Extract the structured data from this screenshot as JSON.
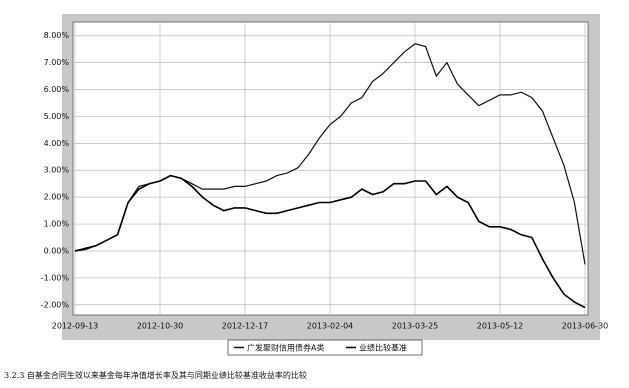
{
  "chart_data": {
    "type": "line",
    "categories": [
      "2012-09-13",
      null,
      null,
      null,
      null,
      null,
      null,
      null,
      "2012-10-30",
      null,
      null,
      null,
      null,
      null,
      null,
      null,
      "2012-12-17",
      null,
      null,
      null,
      null,
      null,
      null,
      null,
      "2013-02-04",
      null,
      null,
      null,
      null,
      null,
      null,
      null,
      "2013-03-25",
      null,
      null,
      null,
      null,
      null,
      null,
      null,
      "2013-05-12",
      null,
      null,
      null,
      null,
      null,
      null,
      null,
      "2013-06-30"
    ],
    "series": [
      {
        "name": "广发聚财信用债券A类",
        "color": "#111111",
        "values": [
          0.0,
          0.05,
          0.2,
          0.4,
          0.6,
          1.8,
          2.4,
          2.5,
          2.6,
          2.8,
          2.7,
          2.5,
          2.3,
          2.3,
          2.3,
          2.4,
          2.4,
          2.5,
          2.6,
          2.8,
          2.9,
          3.1,
          3.6,
          4.2,
          4.7,
          5.0,
          5.5,
          5.7,
          6.3,
          6.6,
          7.0,
          7.4,
          7.7,
          7.6,
          6.5,
          7.0,
          6.2,
          5.8,
          5.4,
          5.6,
          5.8,
          5.8,
          5.9,
          5.7,
          5.2,
          4.2,
          3.2,
          1.8,
          -0.5
        ]
      },
      {
        "name": "业绩比较基准",
        "color": "#000000",
        "values": [
          0.0,
          0.1,
          0.2,
          0.4,
          0.6,
          1.8,
          2.3,
          2.5,
          2.6,
          2.8,
          2.7,
          2.4,
          2.0,
          1.7,
          1.5,
          1.6,
          1.6,
          1.5,
          1.4,
          1.4,
          1.5,
          1.6,
          1.7,
          1.8,
          1.8,
          1.9,
          2.0,
          2.3,
          2.1,
          2.2,
          2.5,
          2.5,
          2.6,
          2.6,
          2.1,
          2.4,
          2.0,
          1.8,
          1.1,
          0.9,
          0.9,
          0.8,
          0.6,
          0.5,
          -0.3,
          -1.0,
          -1.6,
          -1.9,
          -2.1
        ]
      }
    ],
    "ylim": [
      -2.38,
      8.51
    ],
    "yticks": [
      {
        "value": 8,
        "label": "8.00%"
      },
      {
        "value": 7,
        "label": "7.00%"
      },
      {
        "value": 6,
        "label": "6.00%"
      },
      {
        "value": 5,
        "label": "5.00%"
      },
      {
        "value": 4,
        "label": "4.00%"
      },
      {
        "value": 3,
        "label": "3.00%"
      },
      {
        "value": 2,
        "label": "2.00%"
      },
      {
        "value": 1,
        "label": "1.00%"
      },
      {
        "value": 0,
        "label": "0.00%"
      },
      {
        "value": -1,
        "label": "-1.00%"
      },
      {
        "value": -2,
        "label": "-2.00%"
      }
    ],
    "grid": true
  },
  "caption": "3.2.3 自基金合同生效以来基金每年净值增长率及其与同期业绩比较基准收益率的比较"
}
